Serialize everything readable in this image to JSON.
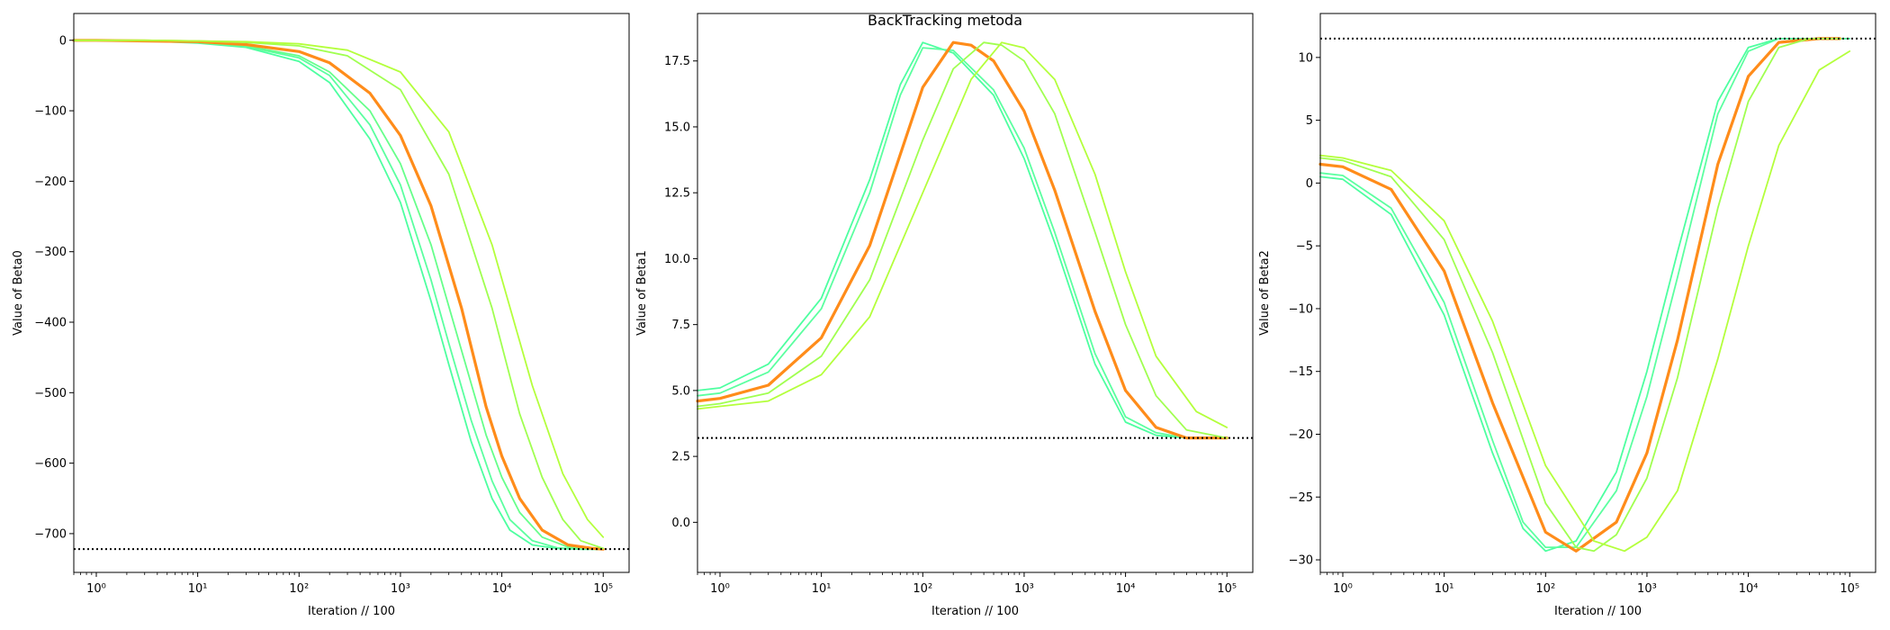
{
  "suptitle": "BackTracking metoda",
  "chart_data": [
    {
      "type": "line",
      "xscale": "log",
      "xlabel": "Iteration // 100",
      "ylabel": "Value of Beta0",
      "xlim": [
        0.6,
        180000
      ],
      "ylim": [
        -755,
        38
      ],
      "x_ticks": [
        1,
        10,
        100,
        1000,
        10000,
        100000
      ],
      "x_tick_labels": [
        "10⁰",
        "10¹",
        "10²",
        "10³",
        "10⁴",
        "10⁵"
      ],
      "y_ticks": [
        0,
        -100,
        -200,
        -300,
        -400,
        -500,
        -600,
        -700
      ],
      "y_tick_labels": [
        "0",
        "−100",
        "−200",
        "−300",
        "−400",
        "−500",
        "−600",
        "−700"
      ],
      "reference_line": {
        "y": -722,
        "style": "dotted",
        "color": "#000000"
      },
      "series": [
        {
          "color": "#4dffa0",
          "width": 1.8,
          "x": [
            0.6,
            1,
            3,
            10,
            30,
            100,
            200,
            500,
            1000,
            2000,
            3000,
            5000,
            8000,
            12000,
            20000,
            35000,
            60000,
            100000
          ],
          "y": [
            0,
            0,
            -1,
            -4,
            -10,
            -30,
            -60,
            -140,
            -230,
            -370,
            -460,
            -570,
            -650,
            -695,
            -716,
            -721,
            -722,
            -722
          ]
        },
        {
          "color": "#5cffa0",
          "width": 1.8,
          "x": [
            0.6,
            1,
            3,
            10,
            30,
            100,
            200,
            500,
            1000,
            2000,
            3000,
            5000,
            8000,
            12000,
            20000,
            35000,
            60000,
            100000
          ],
          "y": [
            0,
            0,
            -1,
            -3,
            -9,
            -25,
            -50,
            -120,
            -205,
            -340,
            -430,
            -540,
            -625,
            -680,
            -710,
            -720,
            -722,
            -722
          ]
        },
        {
          "color": "#66ff8a",
          "width": 1.8,
          "x": [
            0.6,
            1,
            3,
            10,
            30,
            100,
            200,
            500,
            1000,
            2000,
            4000,
            7000,
            10000,
            15000,
            25000,
            45000,
            80000,
            100000
          ],
          "y": [
            0,
            0,
            -1,
            -3,
            -8,
            -22,
            -45,
            -100,
            -175,
            -290,
            -440,
            -560,
            -620,
            -670,
            -705,
            -719,
            -722,
            -722
          ]
        },
        {
          "color": "#ff8c1a",
          "width": 3.2,
          "x": [
            0.6,
            1,
            3,
            10,
            30,
            100,
            200,
            500,
            1000,
            2000,
            4000,
            7000,
            10000,
            15000,
            25000,
            45000,
            80000,
            100000
          ],
          "y": [
            0,
            0,
            -1,
            -2,
            -6,
            -16,
            -32,
            -75,
            -135,
            -235,
            -380,
            -520,
            -590,
            -650,
            -695,
            -716,
            -721,
            -722
          ]
        },
        {
          "color": "#a0ff50",
          "width": 1.8,
          "x": [
            0.6,
            1,
            3,
            10,
            30,
            100,
            300,
            1000,
            3000,
            8000,
            15000,
            25000,
            40000,
            60000,
            100000
          ],
          "y": [
            0,
            0,
            0,
            -1,
            -3,
            -8,
            -22,
            -70,
            -190,
            -380,
            -530,
            -620,
            -680,
            -710,
            -721
          ]
        },
        {
          "color": "#b4ff3c",
          "width": 1.8,
          "x": [
            0.6,
            1,
            3,
            10,
            30,
            100,
            300,
            1000,
            3000,
            8000,
            20000,
            40000,
            70000,
            100000
          ],
          "y": [
            0,
            0,
            0,
            -1,
            -2,
            -5,
            -14,
            -45,
            -130,
            -290,
            -490,
            -615,
            -680,
            -705
          ]
        }
      ]
    },
    {
      "type": "line",
      "xscale": "log",
      "xlabel": "Iteration // 100",
      "ylabel": "Value of Beta1",
      "xlim": [
        0.6,
        180000
      ],
      "ylim": [
        -1.9,
        19.3
      ],
      "x_ticks": [
        1,
        10,
        100,
        1000,
        10000,
        100000
      ],
      "x_tick_labels": [
        "10⁰",
        "10¹",
        "10²",
        "10³",
        "10⁴",
        "10⁵"
      ],
      "y_ticks": [
        0.0,
        2.5,
        5.0,
        7.5,
        10.0,
        12.5,
        15.0,
        17.5
      ],
      "y_tick_labels": [
        "0.0",
        "2.5",
        "5.0",
        "7.5",
        "10.0",
        "12.5",
        "15.0",
        "17.5"
      ],
      "reference_line": {
        "y": 3.2,
        "style": "dotted",
        "color": "#000000"
      },
      "series": [
        {
          "color": "#4dffa0",
          "width": 1.8,
          "x": [
            0.6,
            1,
            3,
            10,
            30,
            60,
            100,
            200,
            500,
            1000,
            2000,
            5000,
            10000,
            20000,
            40000,
            100000
          ],
          "y": [
            5.0,
            5.1,
            6.0,
            8.5,
            13.0,
            16.6,
            18.2,
            17.8,
            16.2,
            13.8,
            10.6,
            6.0,
            3.8,
            3.3,
            3.2,
            3.2
          ]
        },
        {
          "color": "#5cffa0",
          "width": 1.8,
          "x": [
            0.6,
            1,
            3,
            10,
            30,
            60,
            100,
            200,
            500,
            1000,
            2000,
            5000,
            10000,
            20000,
            40000,
            100000
          ],
          "y": [
            4.8,
            4.9,
            5.7,
            8.1,
            12.5,
            16.2,
            18.0,
            17.9,
            16.4,
            14.2,
            11.0,
            6.4,
            4.0,
            3.4,
            3.2,
            3.2
          ]
        },
        {
          "color": "#ff8c1a",
          "width": 3.2,
          "x": [
            0.6,
            1,
            3,
            10,
            30,
            100,
            200,
            300,
            500,
            1000,
            2000,
            5000,
            10000,
            20000,
            40000,
            100000
          ],
          "y": [
            4.6,
            4.7,
            5.2,
            7.0,
            10.5,
            16.5,
            18.2,
            18.1,
            17.5,
            15.6,
            12.6,
            8.0,
            5.0,
            3.6,
            3.2,
            3.2
          ]
        },
        {
          "color": "#a0ff50",
          "width": 1.8,
          "x": [
            0.6,
            1,
            3,
            10,
            30,
            100,
            200,
            400,
            600,
            1000,
            2000,
            5000,
            10000,
            20000,
            40000,
            100000
          ],
          "y": [
            4.4,
            4.5,
            4.9,
            6.3,
            9.2,
            14.5,
            17.2,
            18.2,
            18.1,
            17.5,
            15.5,
            11.0,
            7.5,
            4.8,
            3.5,
            3.2
          ]
        },
        {
          "color": "#b4ff3c",
          "width": 1.8,
          "x": [
            0.6,
            1,
            3,
            10,
            30,
            100,
            300,
            600,
            1000,
            2000,
            5000,
            10000,
            20000,
            50000,
            100000
          ],
          "y": [
            4.3,
            4.4,
            4.6,
            5.6,
            7.8,
            12.5,
            16.8,
            18.2,
            18.0,
            16.8,
            13.2,
            9.5,
            6.3,
            4.2,
            3.6
          ]
        }
      ]
    },
    {
      "type": "line",
      "xscale": "log",
      "xlabel": "Iteration // 100",
      "ylabel": "Value of Beta2",
      "xlim": [
        0.6,
        180000
      ],
      "ylim": [
        -31.0,
        13.5
      ],
      "x_ticks": [
        1,
        10,
        100,
        1000,
        10000,
        100000
      ],
      "x_tick_labels": [
        "10⁰",
        "10¹",
        "10²",
        "10³",
        "10⁴",
        "10⁵"
      ],
      "y_ticks": [
        10,
        5,
        0,
        -5,
        -10,
        -15,
        -20,
        -25,
        -30
      ],
      "y_tick_labels": [
        "10",
        "5",
        "0",
        "−5",
        "−10",
        "−15",
        "−20",
        "−25",
        "−30"
      ],
      "reference_line": {
        "y": 11.5,
        "style": "dotted",
        "color": "#000000"
      },
      "series": [
        {
          "color": "#4dffa0",
          "width": 1.8,
          "x": [
            0.6,
            1,
            3,
            10,
            30,
            60,
            100,
            200,
            500,
            1000,
            2000,
            5000,
            10000,
            20000,
            50000,
            100000
          ],
          "y": [
            0.5,
            0.3,
            -2.5,
            -10.5,
            -21.5,
            -27.5,
            -29.3,
            -28.5,
            -23.0,
            -15.0,
            -5.5,
            6.5,
            10.8,
            11.5,
            11.5,
            11.5
          ]
        },
        {
          "color": "#5cffa0",
          "width": 1.8,
          "x": [
            0.6,
            1,
            3,
            10,
            30,
            60,
            100,
            200,
            500,
            1000,
            2000,
            5000,
            10000,
            20000,
            50000,
            100000
          ],
          "y": [
            0.8,
            0.6,
            -2.0,
            -9.5,
            -20.5,
            -27.0,
            -29.0,
            -29.0,
            -24.5,
            -17.0,
            -7.5,
            5.5,
            10.5,
            11.5,
            11.5,
            11.5
          ]
        },
        {
          "color": "#ff8c1a",
          "width": 3.2,
          "x": [
            0.6,
            1,
            3,
            10,
            30,
            100,
            200,
            500,
            1000,
            2000,
            5000,
            10000,
            20000,
            50000,
            80000
          ],
          "y": [
            1.5,
            1.3,
            -0.5,
            -7.0,
            -17.5,
            -27.8,
            -29.3,
            -27.0,
            -21.5,
            -12.5,
            1.5,
            8.5,
            11.2,
            11.5,
            11.5
          ]
        },
        {
          "color": "#a0ff50",
          "width": 1.8,
          "x": [
            0.6,
            1,
            3,
            10,
            30,
            100,
            200,
            300,
            500,
            1000,
            2000,
            5000,
            10000,
            20000,
            40000,
            80000
          ],
          "y": [
            2.0,
            1.8,
            0.5,
            -4.5,
            -13.5,
            -25.5,
            -29.0,
            -29.3,
            -28.0,
            -23.5,
            -15.5,
            -2.0,
            6.5,
            10.8,
            11.5,
            11.5
          ]
        },
        {
          "color": "#b4ff3c",
          "width": 1.8,
          "x": [
            0.6,
            1,
            3,
            10,
            30,
            100,
            300,
            600,
            1000,
            2000,
            5000,
            10000,
            20000,
            50000,
            100000
          ],
          "y": [
            2.2,
            2.0,
            1.0,
            -3.0,
            -11.0,
            -22.5,
            -28.5,
            -29.3,
            -28.2,
            -24.5,
            -14.0,
            -5.0,
            3.0,
            9.0,
            10.5
          ]
        }
      ]
    }
  ]
}
